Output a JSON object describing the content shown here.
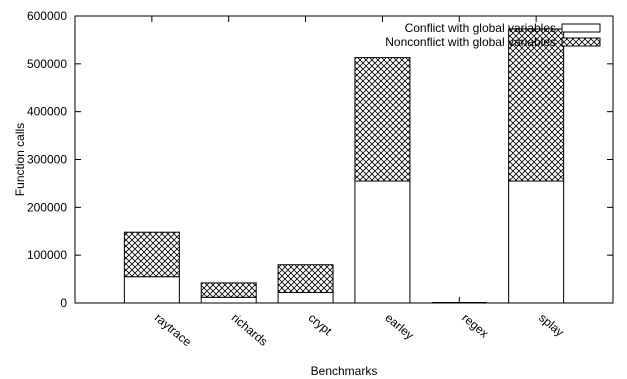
{
  "chart_data": {
    "type": "bar",
    "stacked": true,
    "categories": [
      "raytrace",
      "richards",
      "crypt",
      "earley",
      "regex",
      "splay"
    ],
    "series": [
      {
        "name": "Conflict with global variables",
        "values": [
          55000,
          12000,
          22000,
          255000,
          0,
          255000
        ],
        "fill": "none"
      },
      {
        "name": "Nonconflict with global variables",
        "values": [
          93000,
          30000,
          58000,
          258000,
          0,
          318000
        ],
        "fill": "crosshatch"
      }
    ],
    "xlabel": "Benchmarks",
    "ylabel": "Function calls",
    "ylim": [
      0,
      600000
    ],
    "yticks": [
      0,
      100000,
      200000,
      300000,
      400000,
      500000,
      600000
    ],
    "legend_position": "top-right",
    "grid": false
  }
}
